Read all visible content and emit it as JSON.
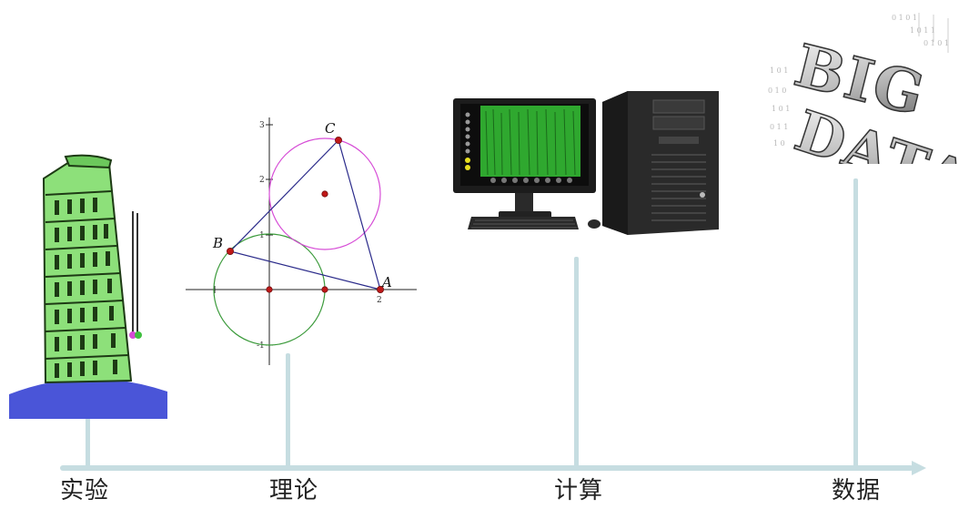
{
  "timeline": {
    "stages": [
      {
        "label": "实验",
        "image": "leaning-tower-experiment"
      },
      {
        "label": "理论",
        "image": "geometry-diagram"
      },
      {
        "label": "计算",
        "image": "desktop-computer"
      },
      {
        "label": "数据",
        "image": "big-data-text"
      }
    ],
    "axis_color": "#c6dde1"
  },
  "geometry": {
    "point_a": "A",
    "point_b": "B",
    "point_c": "C",
    "tick_labels": [
      "3",
      "2",
      "1",
      "-1",
      "2"
    ]
  },
  "bigdata": {
    "line1": "BIG",
    "line2": "DATA"
  },
  "colors": {
    "tower_green": "#8de07a",
    "ground_blue": "#4a55d8",
    "circle_green": "#3a9a3a",
    "circle_magenta": "#d64bd6",
    "point_red": "#c01818",
    "screen_green": "#2fa82f"
  }
}
